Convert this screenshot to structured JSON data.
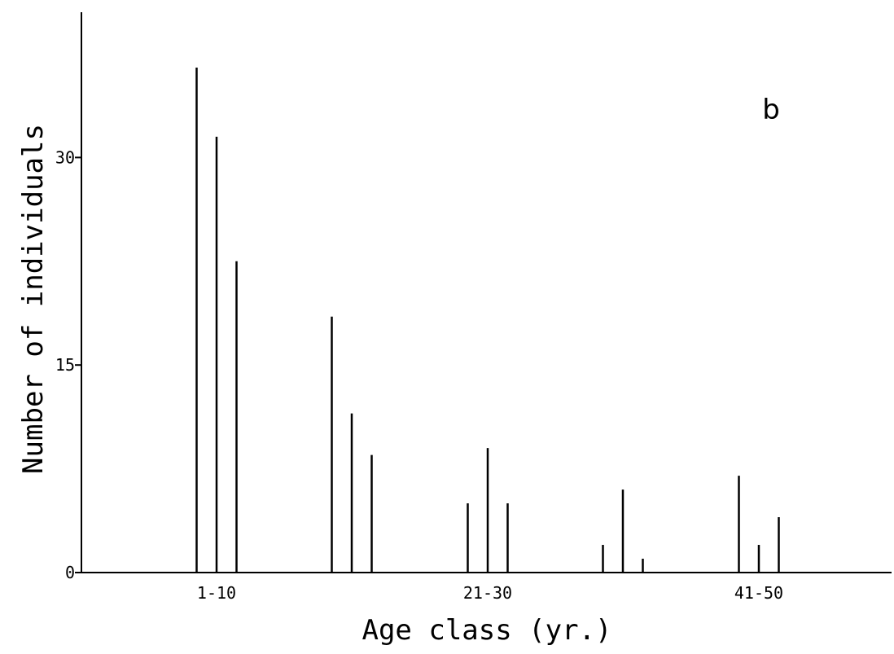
{
  "chart_data": {
    "type": "bar",
    "panel_label": "b",
    "xlabel": "Age class (yr.)",
    "ylabel": "Number of individuals",
    "ylim": [
      0,
      40.5
    ],
    "yticks": [
      {
        "label": "0",
        "value": 0
      },
      {
        "label": "15",
        "value": 15
      },
      {
        "label": "30",
        "value": 30
      }
    ],
    "groups": [
      {
        "label": "1-10",
        "values": [
          36.5,
          31.5,
          22.5
        ]
      },
      {
        "label": "",
        "values": [
          18.5,
          11.5,
          8.5
        ]
      },
      {
        "label": "21-30",
        "values": [
          5,
          9,
          5
        ]
      },
      {
        "label": "",
        "values": [
          2,
          6,
          1
        ]
      },
      {
        "label": "41-50",
        "values": [
          7,
          2,
          4
        ]
      }
    ],
    "grid": false,
    "legend": "none"
  }
}
